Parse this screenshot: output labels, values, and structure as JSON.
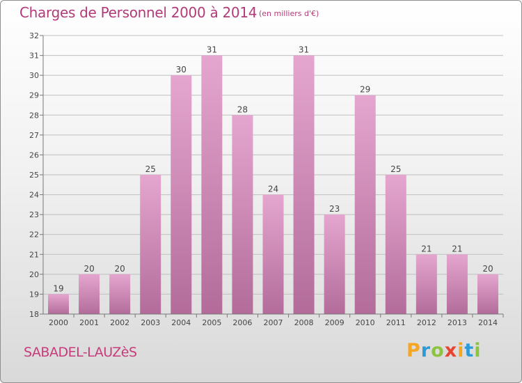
{
  "header": {
    "title": "Charges de Personnel 2000 à 2014",
    "subtitle": "(en milliers d'€)"
  },
  "footer": {
    "commune": "SABADEL-LAUZèS",
    "logo_letters": [
      "P",
      "r",
      "o",
      "x",
      "i",
      "t",
      "i"
    ],
    "logo_colors": [
      "#f5a623",
      "#2e9ad8",
      "#8bc43f",
      "#e8432e",
      "#f5a623",
      "#2e9ad8",
      "#8bc43f"
    ]
  },
  "colors": {
    "bar_top": "#e4a6cf",
    "bar_bottom": "#b36c9a",
    "grid": "#bfbfbf",
    "axis_text": "#444444",
    "accent": "#b23a78"
  },
  "chart_data": {
    "type": "bar",
    "categories": [
      "2000",
      "2001",
      "2002",
      "2003",
      "2004",
      "2005",
      "2006",
      "2007",
      "2008",
      "2009",
      "2010",
      "2011",
      "2012",
      "2013",
      "2014"
    ],
    "values": [
      19,
      20,
      20,
      25,
      30,
      31,
      28,
      24,
      31,
      23,
      29,
      25,
      21,
      21,
      20
    ],
    "yticks": [
      18,
      19,
      20,
      21,
      22,
      23,
      24,
      25,
      26,
      27,
      28,
      29,
      30,
      31,
      32
    ],
    "ylim": [
      18,
      32
    ],
    "grid": true,
    "title": "Charges de Personnel 2000 à 2014",
    "xlabel": "",
    "ylabel": ""
  }
}
